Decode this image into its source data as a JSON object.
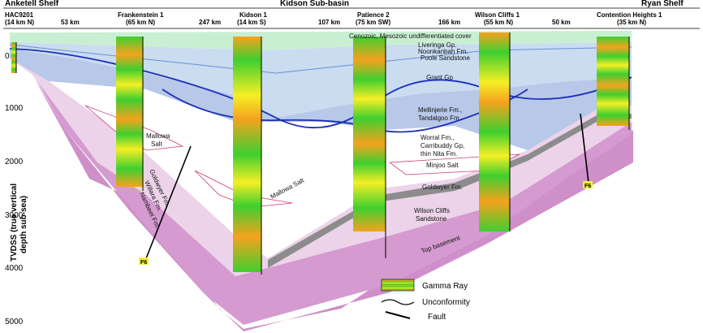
{
  "regions": {
    "left_shelf": "Anketell Shelf",
    "sub_basin": "Kidson Sub-basin",
    "right_shelf": "Ryan Shelf"
  },
  "wells": [
    {
      "name": "HAC9201",
      "sub": "(14 km N)"
    },
    {
      "name": "Frankenstein 1",
      "sub": "(65 km N)"
    },
    {
      "name": "Kidson 1",
      "sub": "(14 km S)"
    },
    {
      "name": "Patience 2",
      "sub": "(75 km SW)"
    },
    {
      "name": "Wilson Cliffs 1",
      "sub": "(55 km N)"
    },
    {
      "name": "Contention Heights 1",
      "sub": "(35 km N)"
    }
  ],
  "distances": [
    "53 km",
    "247 km",
    "107 km",
    "166 km",
    "50 km"
  ],
  "formations": {
    "cover": "Cenozoic, Mesozoic undifferentiated cover",
    "liveringa": "Liveringa Gp.",
    "noonkanbah": "Noonkanbah Fm.",
    "poole": "Poole Sandstone",
    "grant": "Grant Gp",
    "mellinjerie_1": "Mellinjerie Fm.,",
    "mellinjerie_2": "Tandalgoo Fm.",
    "worral_1": "Worral Fm.,",
    "worral_2": "Carribuddy Gp,",
    "worral_3": "thin Nita Fm.",
    "minjoo": "Minjoo Salt",
    "goldwyer": "Goldwyer Fm.",
    "wilson_1": "Wilson Cliffs",
    "wilson_2": "Sandstone",
    "basement": "Top basement",
    "mallowa_1": "Mallowa",
    "mallowa_2": "Salt",
    "mallowa_kidson": "Mallowa Salt",
    "goldwyer_left": "Goldwyer Fm.",
    "willara": "Willara Fm.",
    "nambeet": "Nambeet Fm."
  },
  "axis": {
    "label_1": "TVDSS (true vertical",
    "label_2": "depth sub-sea)",
    "ticks": [
      "0",
      "1000",
      "2000",
      "3000",
      "4000",
      "5000"
    ]
  },
  "faults": [
    "F6",
    "F6"
  ],
  "legend": {
    "gamma": "Gamma Ray",
    "unconformity": "Unconformity",
    "fault": "Fault"
  },
  "colors": {
    "cover": "#c9efd3",
    "upper_blue": "#c9dcf0",
    "grant": "#b8c8e8",
    "pink": "#ecd3ea",
    "magenta": "#cf8fc9",
    "goldwyer": "#8c8c8c",
    "gamma_green": "#3fcf2f",
    "gamma_orange": "#f5a21e",
    "gamma_yellow": "#f5ef25",
    "unconformity": "#1a2fb8",
    "fault_label": "#f5f03a"
  }
}
